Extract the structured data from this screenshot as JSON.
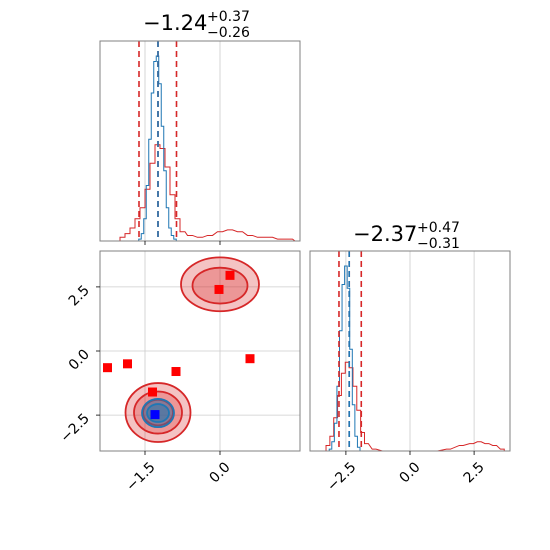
{
  "colors": {
    "blue": "#1f77b4",
    "red": "#d62728",
    "marker_red": "#ff0000",
    "marker_blue": "#0000ff",
    "grid": "#cccccc",
    "frame": "#808080"
  },
  "chart_data": {
    "type": "corner",
    "parameters": [
      "p1",
      "p2"
    ],
    "grid": true,
    "titles": [
      {
        "main": "−1.24",
        "upper": "+0.37",
        "lower": "−0.26"
      },
      {
        "main": "−2.37",
        "upper": "+0.47",
        "lower": "−0.31"
      }
    ],
    "ranges": {
      "p1": [
        -2.4,
        1.6
      ],
      "p2": [
        -3.9,
        3.9
      ]
    },
    "ticks": {
      "p1": {
        "values": [
          -1.5,
          0.0
        ],
        "labels": [
          "−1.5",
          "0.0"
        ]
      },
      "p2": {
        "values": [
          -2.5,
          0.0,
          2.5
        ],
        "labels": [
          "−2.5",
          "0.0",
          "2.5"
        ]
      }
    },
    "quantile_lines": {
      "blue": {
        "p1": [
          -1.24
        ],
        "p2": [
          -2.37
        ]
      },
      "red": {
        "p1": [
          -1.62,
          -1.24,
          -0.87
        ],
        "p2": [
          -2.77,
          -2.37,
          -1.9
        ]
      }
    },
    "hist_blue_p1": {
      "edges": [
        -2.4,
        1.6
      ],
      "bins": 100,
      "centers": [
        -1.6,
        -1.55,
        -1.5,
        -1.45,
        -1.4,
        -1.35,
        -1.3,
        -1.25,
        -1.2,
        -1.15,
        -1.1,
        -1.05,
        -1.0,
        -0.95,
        -0.9,
        -0.85
      ],
      "counts": [
        0.01,
        0.04,
        0.12,
        0.3,
        0.55,
        0.8,
        0.97,
        1.0,
        0.85,
        0.62,
        0.38,
        0.18,
        0.07,
        0.03,
        0.01,
        0.0
      ]
    },
    "hist_red_p1": {
      "centers": [
        -1.95,
        -1.85,
        -1.75,
        -1.65,
        -1.55,
        -1.45,
        -1.35,
        -1.25,
        -1.15,
        -1.05,
        -0.95,
        -0.85,
        -0.75,
        -0.6,
        -0.4,
        -0.2,
        0.0,
        0.2,
        0.4,
        0.6,
        0.8,
        1.0,
        1.2,
        1.4,
        1.55
      ],
      "counts": [
        0.02,
        0.04,
        0.07,
        0.12,
        0.18,
        0.28,
        0.42,
        0.52,
        0.5,
        0.4,
        0.25,
        0.12,
        0.05,
        0.03,
        0.02,
        0.03,
        0.05,
        0.06,
        0.05,
        0.03,
        0.02,
        0.02,
        0.01,
        0.01,
        0.0
      ]
    },
    "hist_blue_p2": {
      "centers": [
        -3.1,
        -3.0,
        -2.9,
        -2.8,
        -2.7,
        -2.6,
        -2.5,
        -2.4,
        -2.3,
        -2.2,
        -2.1,
        -2.0
      ],
      "counts": [
        0.01,
        0.05,
        0.15,
        0.35,
        0.65,
        0.9,
        1.0,
        0.88,
        0.55,
        0.25,
        0.08,
        0.02
      ]
    },
    "hist_red_p2": {
      "centers": [
        -3.2,
        -3.05,
        -2.9,
        -2.75,
        -2.6,
        -2.45,
        -2.3,
        -2.15,
        -2.0,
        -1.85,
        -1.7,
        -1.4,
        -1.0,
        -0.5,
        0.0,
        0.5,
        1.0,
        1.5,
        2.0,
        2.4,
        2.7,
        3.0,
        3.3,
        3.6
      ],
      "counts": [
        0.03,
        0.08,
        0.18,
        0.3,
        0.42,
        0.48,
        0.45,
        0.35,
        0.22,
        0.1,
        0.04,
        0.01,
        0.0,
        0.0,
        0.0,
        0.0,
        0.0,
        0.01,
        0.03,
        0.04,
        0.05,
        0.04,
        0.03,
        0.01
      ]
    },
    "contours_blue_2d": [
      {
        "cx": -1.24,
        "cy": -2.42,
        "rx": 0.32,
        "ry": 0.55
      },
      {
        "cx": -1.24,
        "cy": -2.42,
        "rx": 0.22,
        "ry": 0.35
      }
    ],
    "contours_red_2d": [
      {
        "cx": -1.24,
        "cy": -2.4,
        "rx": 0.65,
        "ry": 1.15
      },
      {
        "cx": -1.24,
        "cy": -2.4,
        "rx": 0.48,
        "ry": 0.82
      },
      {
        "cx": -1.24,
        "cy": -2.4,
        "rx": 0.3,
        "ry": 0.5
      },
      {
        "cx": 0.0,
        "cy": 2.6,
        "rx": 0.78,
        "ry": 1.05
      },
      {
        "cx": 0.0,
        "cy": 2.55,
        "rx": 0.55,
        "ry": 0.7
      }
    ],
    "markers_red": [
      {
        "x": -2.25,
        "y": -0.65
      },
      {
        "x": -1.85,
        "y": -0.5
      },
      {
        "x": -0.88,
        "y": -0.8
      },
      {
        "x": -1.35,
        "y": -1.6
      },
      {
        "x": 0.2,
        "y": 2.95
      },
      {
        "x": -0.02,
        "y": 2.4
      },
      {
        "x": 0.6,
        "y": -0.3
      }
    ],
    "markers_blue": [
      {
        "x": -1.3,
        "y": -2.48
      }
    ]
  }
}
